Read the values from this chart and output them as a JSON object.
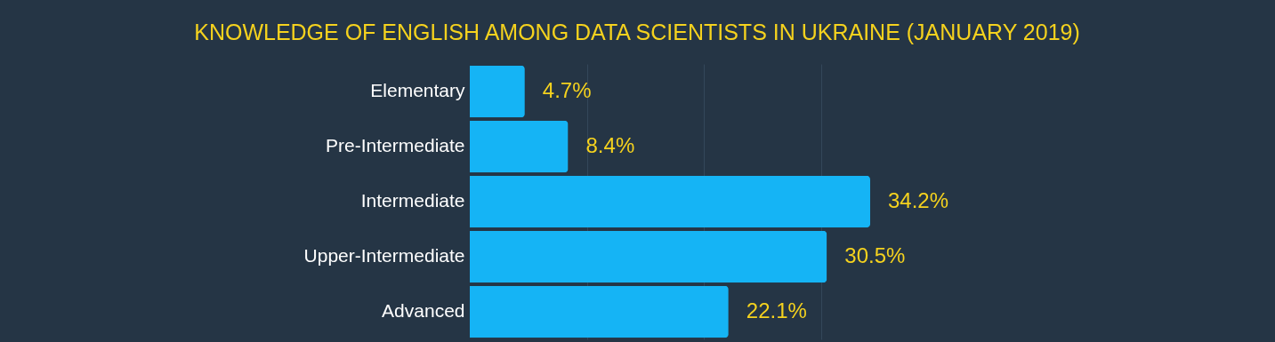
{
  "chart_data": {
    "type": "bar",
    "orientation": "horizontal",
    "title": "KNOWLEDGE OF ENGLISH AMONG DATA SCIENTISTS IN UKRAINE (JANUARY 2019)",
    "categories": [
      "Elementary",
      "Pre-Intermediate",
      "Intermediate",
      "Upper-Intermediate",
      "Advanced"
    ],
    "values": [
      4.7,
      8.4,
      34.2,
      30.5,
      22.1
    ],
    "color": "#15b4f5",
    "value_labels": [
      "4.7%",
      "8.4%",
      "34.2%",
      "30.5%",
      "22.1%"
    ],
    "xticks": [
      {
        "value": 10,
        "label": null
      },
      {
        "value": 20,
        "label": null
      },
      {
        "value": 30,
        "label": null
      }
    ],
    "grid": "x",
    "tick_labels": "y"
  }
}
